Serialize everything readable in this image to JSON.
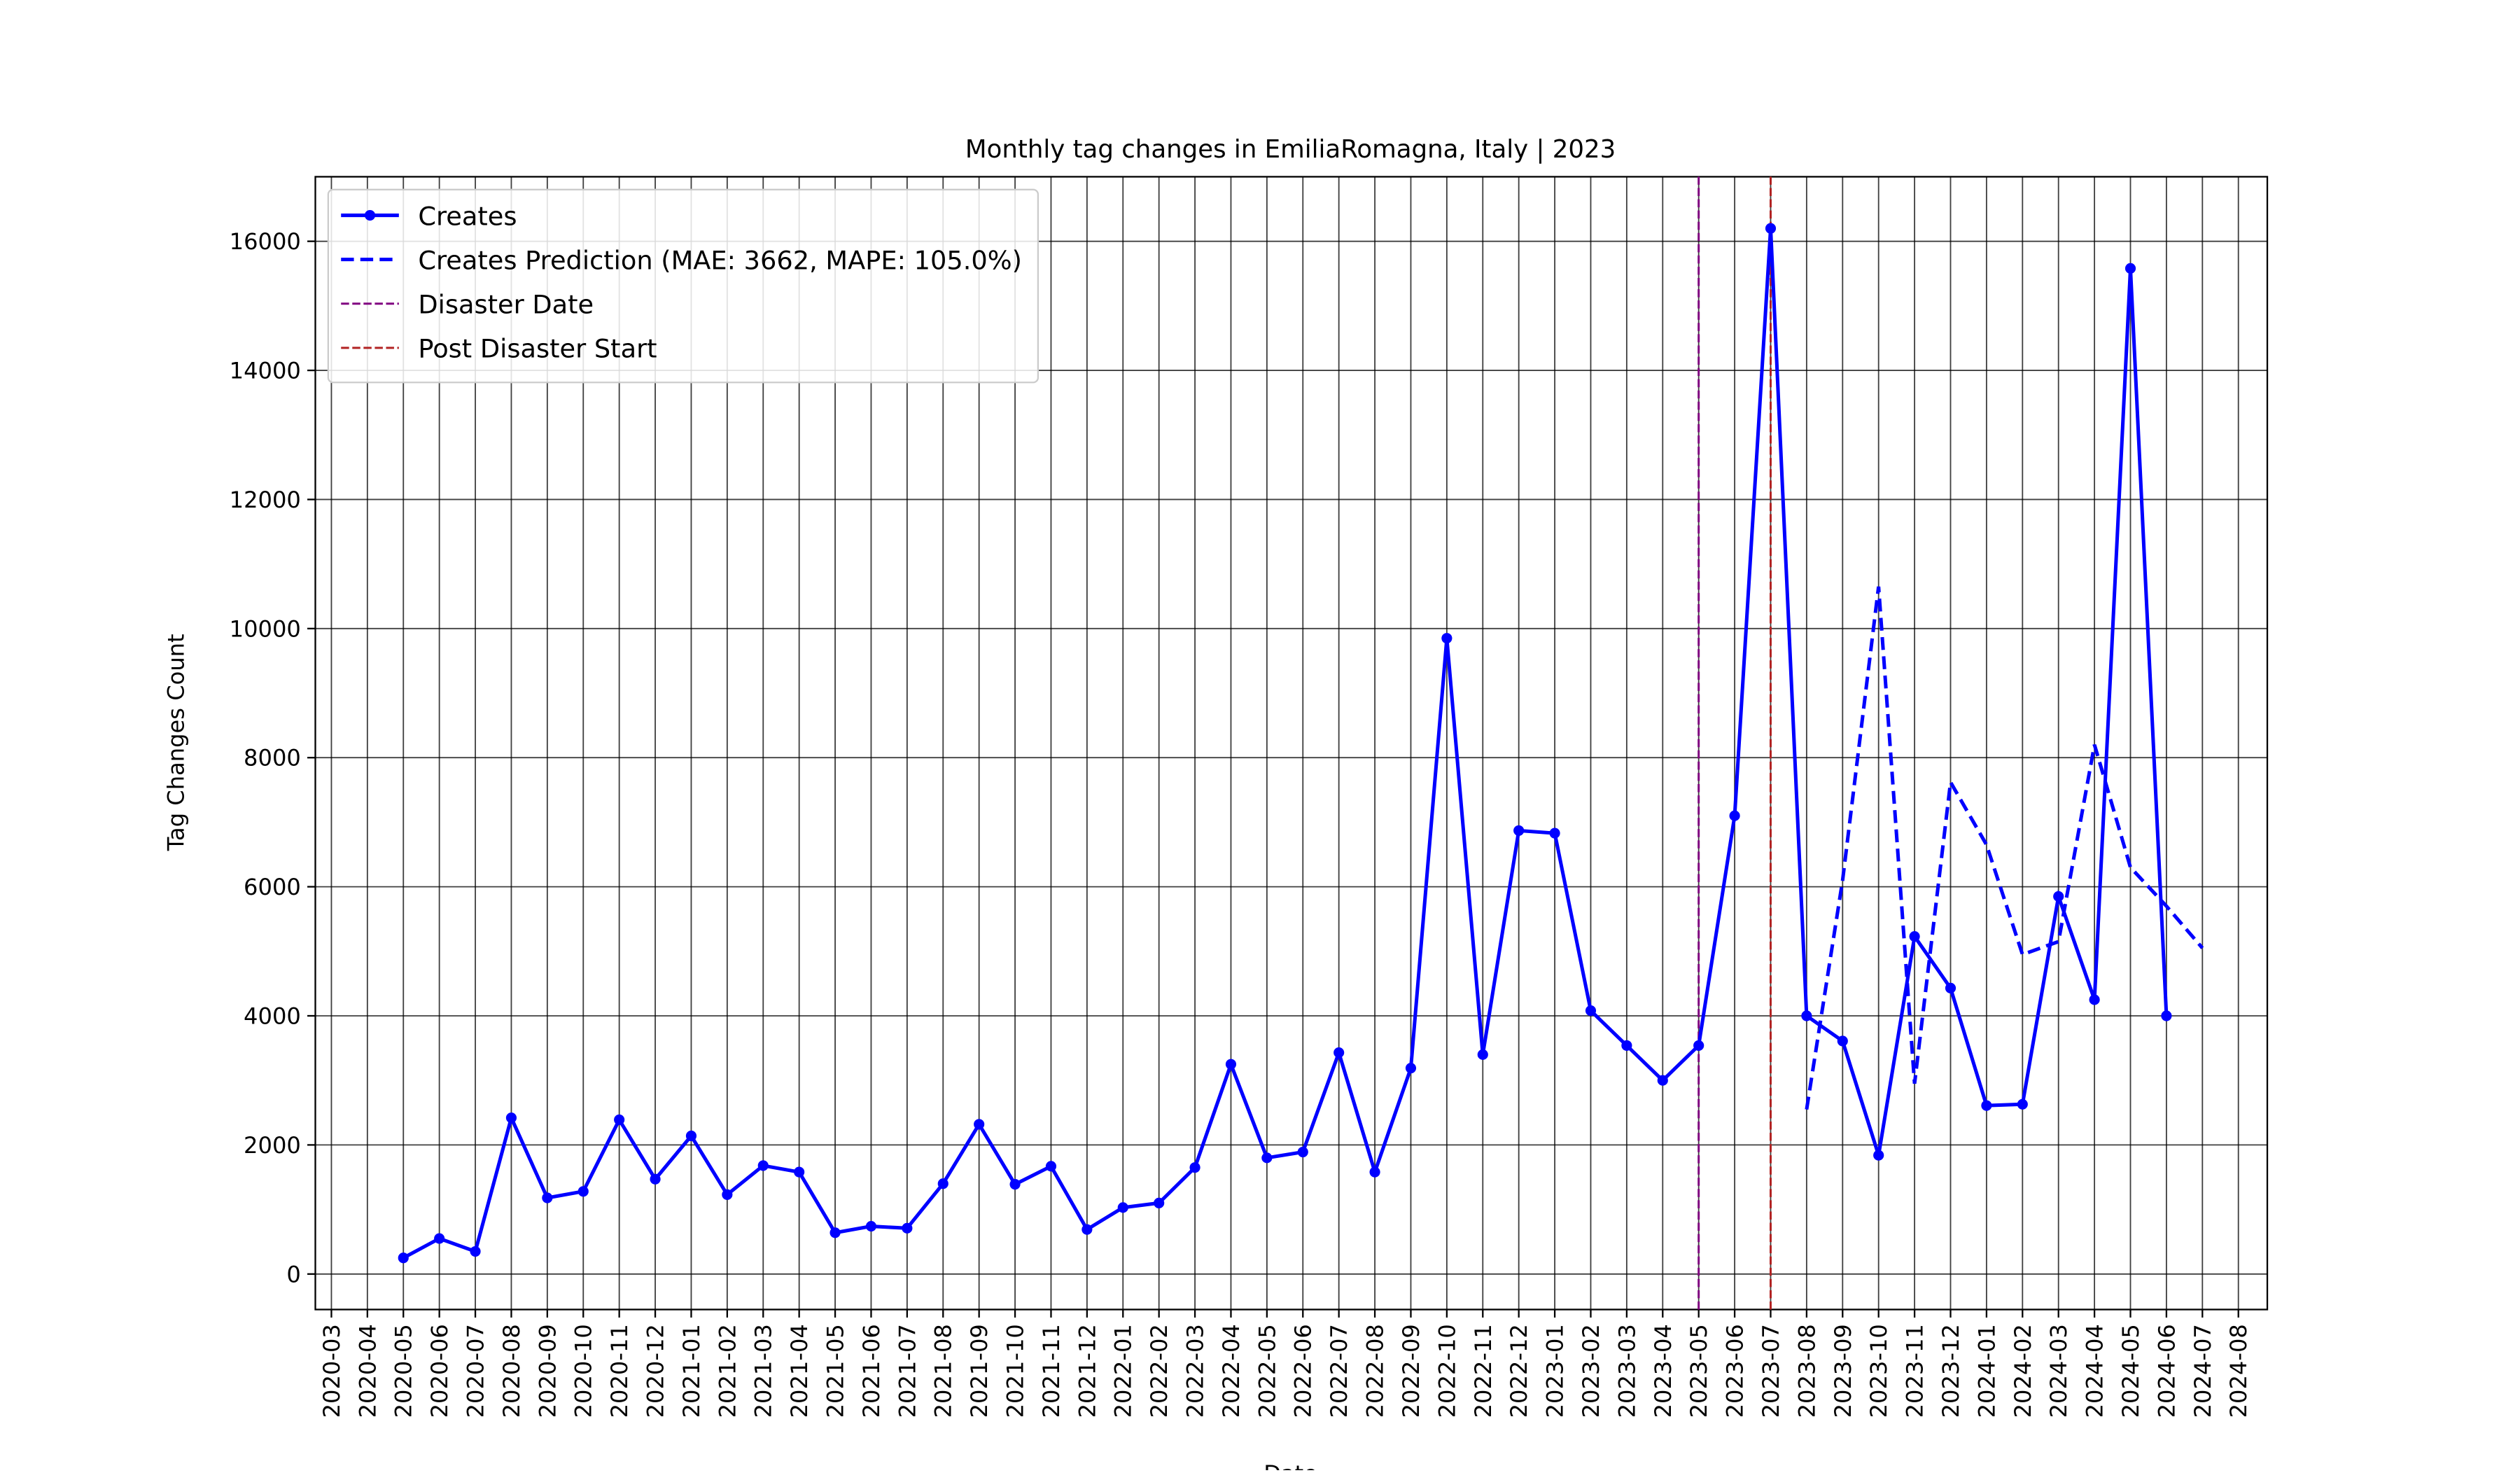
{
  "chart_data": {
    "type": "line",
    "title": "Monthly tag changes in EmiliaRomagna, Italy | 2023",
    "xlabel": "Date",
    "ylabel": "Tag Changes Count",
    "x_axis": [
      "2020-03",
      "2020-04",
      "2020-05",
      "2020-06",
      "2020-07",
      "2020-08",
      "2020-09",
      "2020-10",
      "2020-11",
      "2020-12",
      "2021-01",
      "2021-02",
      "2021-03",
      "2021-04",
      "2021-05",
      "2021-06",
      "2021-07",
      "2021-08",
      "2021-09",
      "2021-10",
      "2021-11",
      "2021-12",
      "2022-01",
      "2022-02",
      "2022-03",
      "2022-04",
      "2022-05",
      "2022-06",
      "2022-07",
      "2022-08",
      "2022-09",
      "2022-10",
      "2022-11",
      "2022-12",
      "2023-01",
      "2023-02",
      "2023-03",
      "2023-04",
      "2023-05",
      "2023-06",
      "2023-07",
      "2023-08",
      "2023-09",
      "2023-10",
      "2023-11",
      "2023-12",
      "2024-01",
      "2024-02",
      "2024-03",
      "2024-04",
      "2024-05",
      "2024-06",
      "2024-07",
      "2024-08"
    ],
    "series": [
      {
        "name": "Creates",
        "color": "#0000ff",
        "style": "solid",
        "markers": true,
        "x": [
          "2020-05",
          "2020-06",
          "2020-07",
          "2020-08",
          "2020-09",
          "2020-10",
          "2020-11",
          "2020-12",
          "2021-01",
          "2021-02",
          "2021-03",
          "2021-04",
          "2021-05",
          "2021-06",
          "2021-07",
          "2021-08",
          "2021-09",
          "2021-10",
          "2021-11",
          "2021-12",
          "2022-01",
          "2022-02",
          "2022-03",
          "2022-04",
          "2022-05",
          "2022-06",
          "2022-07",
          "2022-08",
          "2022-09",
          "2022-10",
          "2022-11",
          "2022-12",
          "2023-01",
          "2023-02",
          "2023-03",
          "2023-04",
          "2023-05",
          "2023-06",
          "2023-07",
          "2023-08",
          "2023-09",
          "2023-10",
          "2023-11",
          "2023-12",
          "2024-01",
          "2024-02",
          "2024-03",
          "2024-04",
          "2024-05",
          "2024-06"
        ],
        "values": [
          250,
          550,
          350,
          2420,
          1180,
          1280,
          2390,
          1470,
          2140,
          1230,
          1680,
          1580,
          640,
          740,
          710,
          1400,
          2320,
          1390,
          1670,
          690,
          1030,
          1100,
          1650,
          3250,
          1800,
          1890,
          3430,
          1580,
          3190,
          9850,
          3400,
          6870,
          6830,
          4080,
          3540,
          3000,
          3540,
          7100,
          16200,
          4000,
          3610,
          1840,
          5230,
          4430,
          2610,
          2630,
          5850,
          4250,
          15580,
          4000
        ]
      },
      {
        "name": "Creates Prediction (MAE: 3662, MAPE: 105.0%)",
        "color": "#0000ff",
        "style": "dashed",
        "markers": false,
        "x": [
          "2023-08",
          "2023-09",
          "2023-10",
          "2023-11",
          "2023-12",
          "2024-01",
          "2024-02",
          "2024-03",
          "2024-04",
          "2024-05",
          "2024-06",
          "2024-07"
        ],
        "values": [
          2550,
          6100,
          10650,
          2950,
          7620,
          6650,
          4950,
          5150,
          8200,
          6300,
          5700,
          5050
        ]
      }
    ],
    "vlines": [
      {
        "name": "Disaster Date",
        "x": "2023-05",
        "color": "#800080"
      },
      {
        "name": "Post Disaster Start",
        "x": "2023-07",
        "color": "#b22222"
      }
    ],
    "ylim": [
      -550,
      17000
    ],
    "yticks": [
      0,
      2000,
      4000,
      6000,
      8000,
      10000,
      12000,
      14000,
      16000
    ],
    "grid": true,
    "legend": "upper left"
  }
}
